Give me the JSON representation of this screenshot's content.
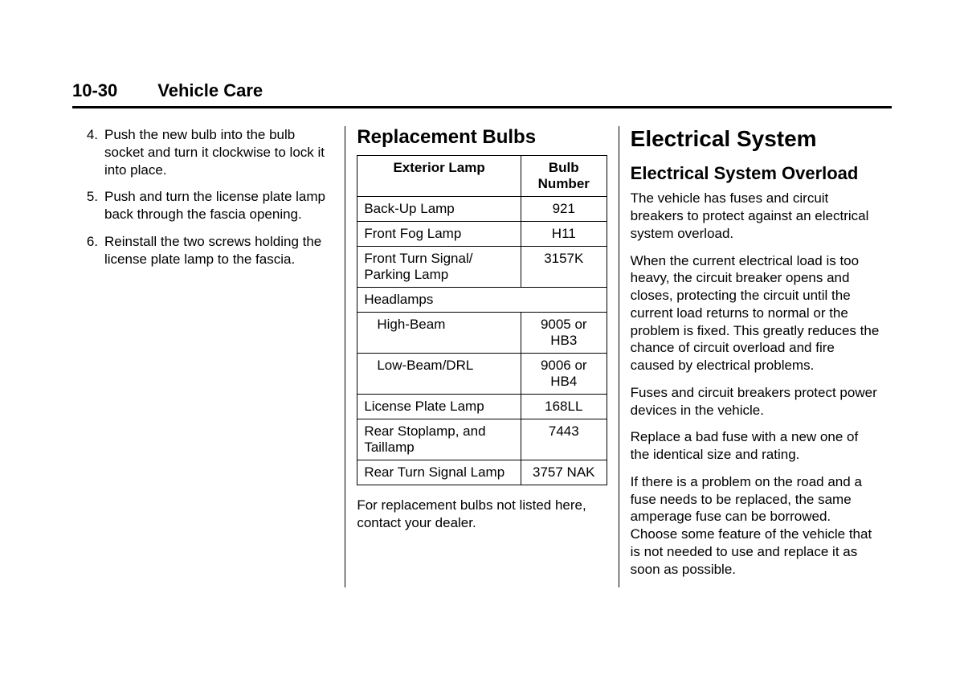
{
  "header": {
    "page_number": "10-30",
    "chapter_title": "Vehicle Care"
  },
  "col1": {
    "steps": [
      {
        "n": "4.",
        "t": "Push the new bulb into the bulb socket and turn it clockwise to lock it into place."
      },
      {
        "n": "5.",
        "t": "Push and turn the license plate lamp back through the fascia opening."
      },
      {
        "n": "6.",
        "t": "Reinstall the two screws holding the license plate lamp to the fascia."
      }
    ]
  },
  "col2": {
    "heading": "Replacement Bulbs",
    "table": {
      "head": [
        "Exterior Lamp",
        "Bulb Number"
      ],
      "rows": [
        {
          "lamp": "Back-Up Lamp",
          "bulb": "921"
        },
        {
          "lamp": "Front Fog Lamp",
          "bulb": "H11"
        },
        {
          "lamp": "Front Turn Signal/ Parking Lamp",
          "bulb": "3157K"
        },
        {
          "lamp": "Headlamps",
          "bulb": "",
          "span": true
        },
        {
          "lamp": "High-Beam",
          "bulb": "9005 or HB3",
          "indent": true
        },
        {
          "lamp": "Low-Beam/DRL",
          "bulb": "9006 or HB4",
          "indent": true
        },
        {
          "lamp": "License Plate Lamp",
          "bulb": "168LL"
        },
        {
          "lamp": "Rear Stoplamp, and Taillamp",
          "bulb": "7443"
        },
        {
          "lamp": "Rear Turn Signal Lamp",
          "bulb": "3757 NAK"
        }
      ]
    },
    "note": "For replacement bulbs not listed here, contact your dealer."
  },
  "col3": {
    "heading": "Electrical System",
    "subheading": "Electrical System Overload",
    "paras": [
      "The vehicle has fuses and circuit breakers to protect against an electrical system overload.",
      "When the current electrical load is too heavy, the circuit breaker opens and closes, protecting the circuit until the current load returns to normal or the problem is fixed. This greatly reduces the chance of circuit overload and fire caused by electrical problems.",
      "Fuses and circuit breakers protect power devices in the vehicle.",
      "Replace a bad fuse with a new one of the identical size and rating.",
      "If there is a problem on the road and a fuse needs to be replaced, the same amperage fuse can be borrowed. Choose some feature of the vehicle that is not needed to use and replace it as soon as possible."
    ]
  }
}
